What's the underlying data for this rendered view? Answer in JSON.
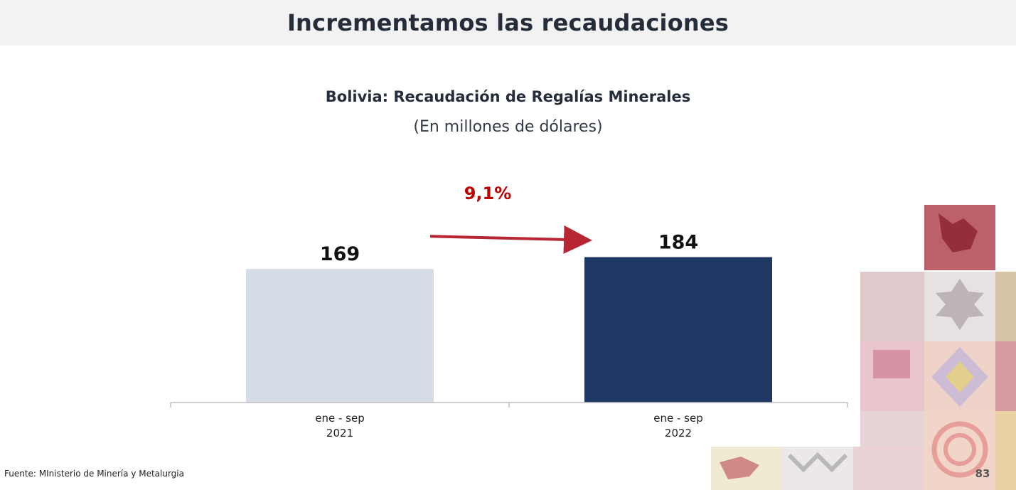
{
  "slide": {
    "title": "Incrementamos las recaudaciones",
    "source": "Fuente: MInisterio de Minería y Metalurgia",
    "page_number": "83"
  },
  "colors": {
    "bar_2021": "#d6dce5",
    "bar_2022": "#203864",
    "growth_arrow": "#b72633",
    "growth_text": "#c00000",
    "axis": "#bfbfbf"
  },
  "decoration": {
    "icon": "andean-textile-mosaic"
  },
  "chart_data": {
    "type": "bar",
    "title": "Bolivia: Recaudación de Regalías Minerales",
    "subtitle": "(En millones de dólares)",
    "categories": [
      [
        "ene - sep",
        "2021"
      ],
      [
        "ene - sep",
        "2022"
      ]
    ],
    "values": [
      169,
      184
    ],
    "value_labels": [
      "169",
      "184"
    ],
    "growth_label": "9,1%",
    "ylim": [
      0,
      200
    ],
    "grid": false,
    "legend": "none"
  }
}
